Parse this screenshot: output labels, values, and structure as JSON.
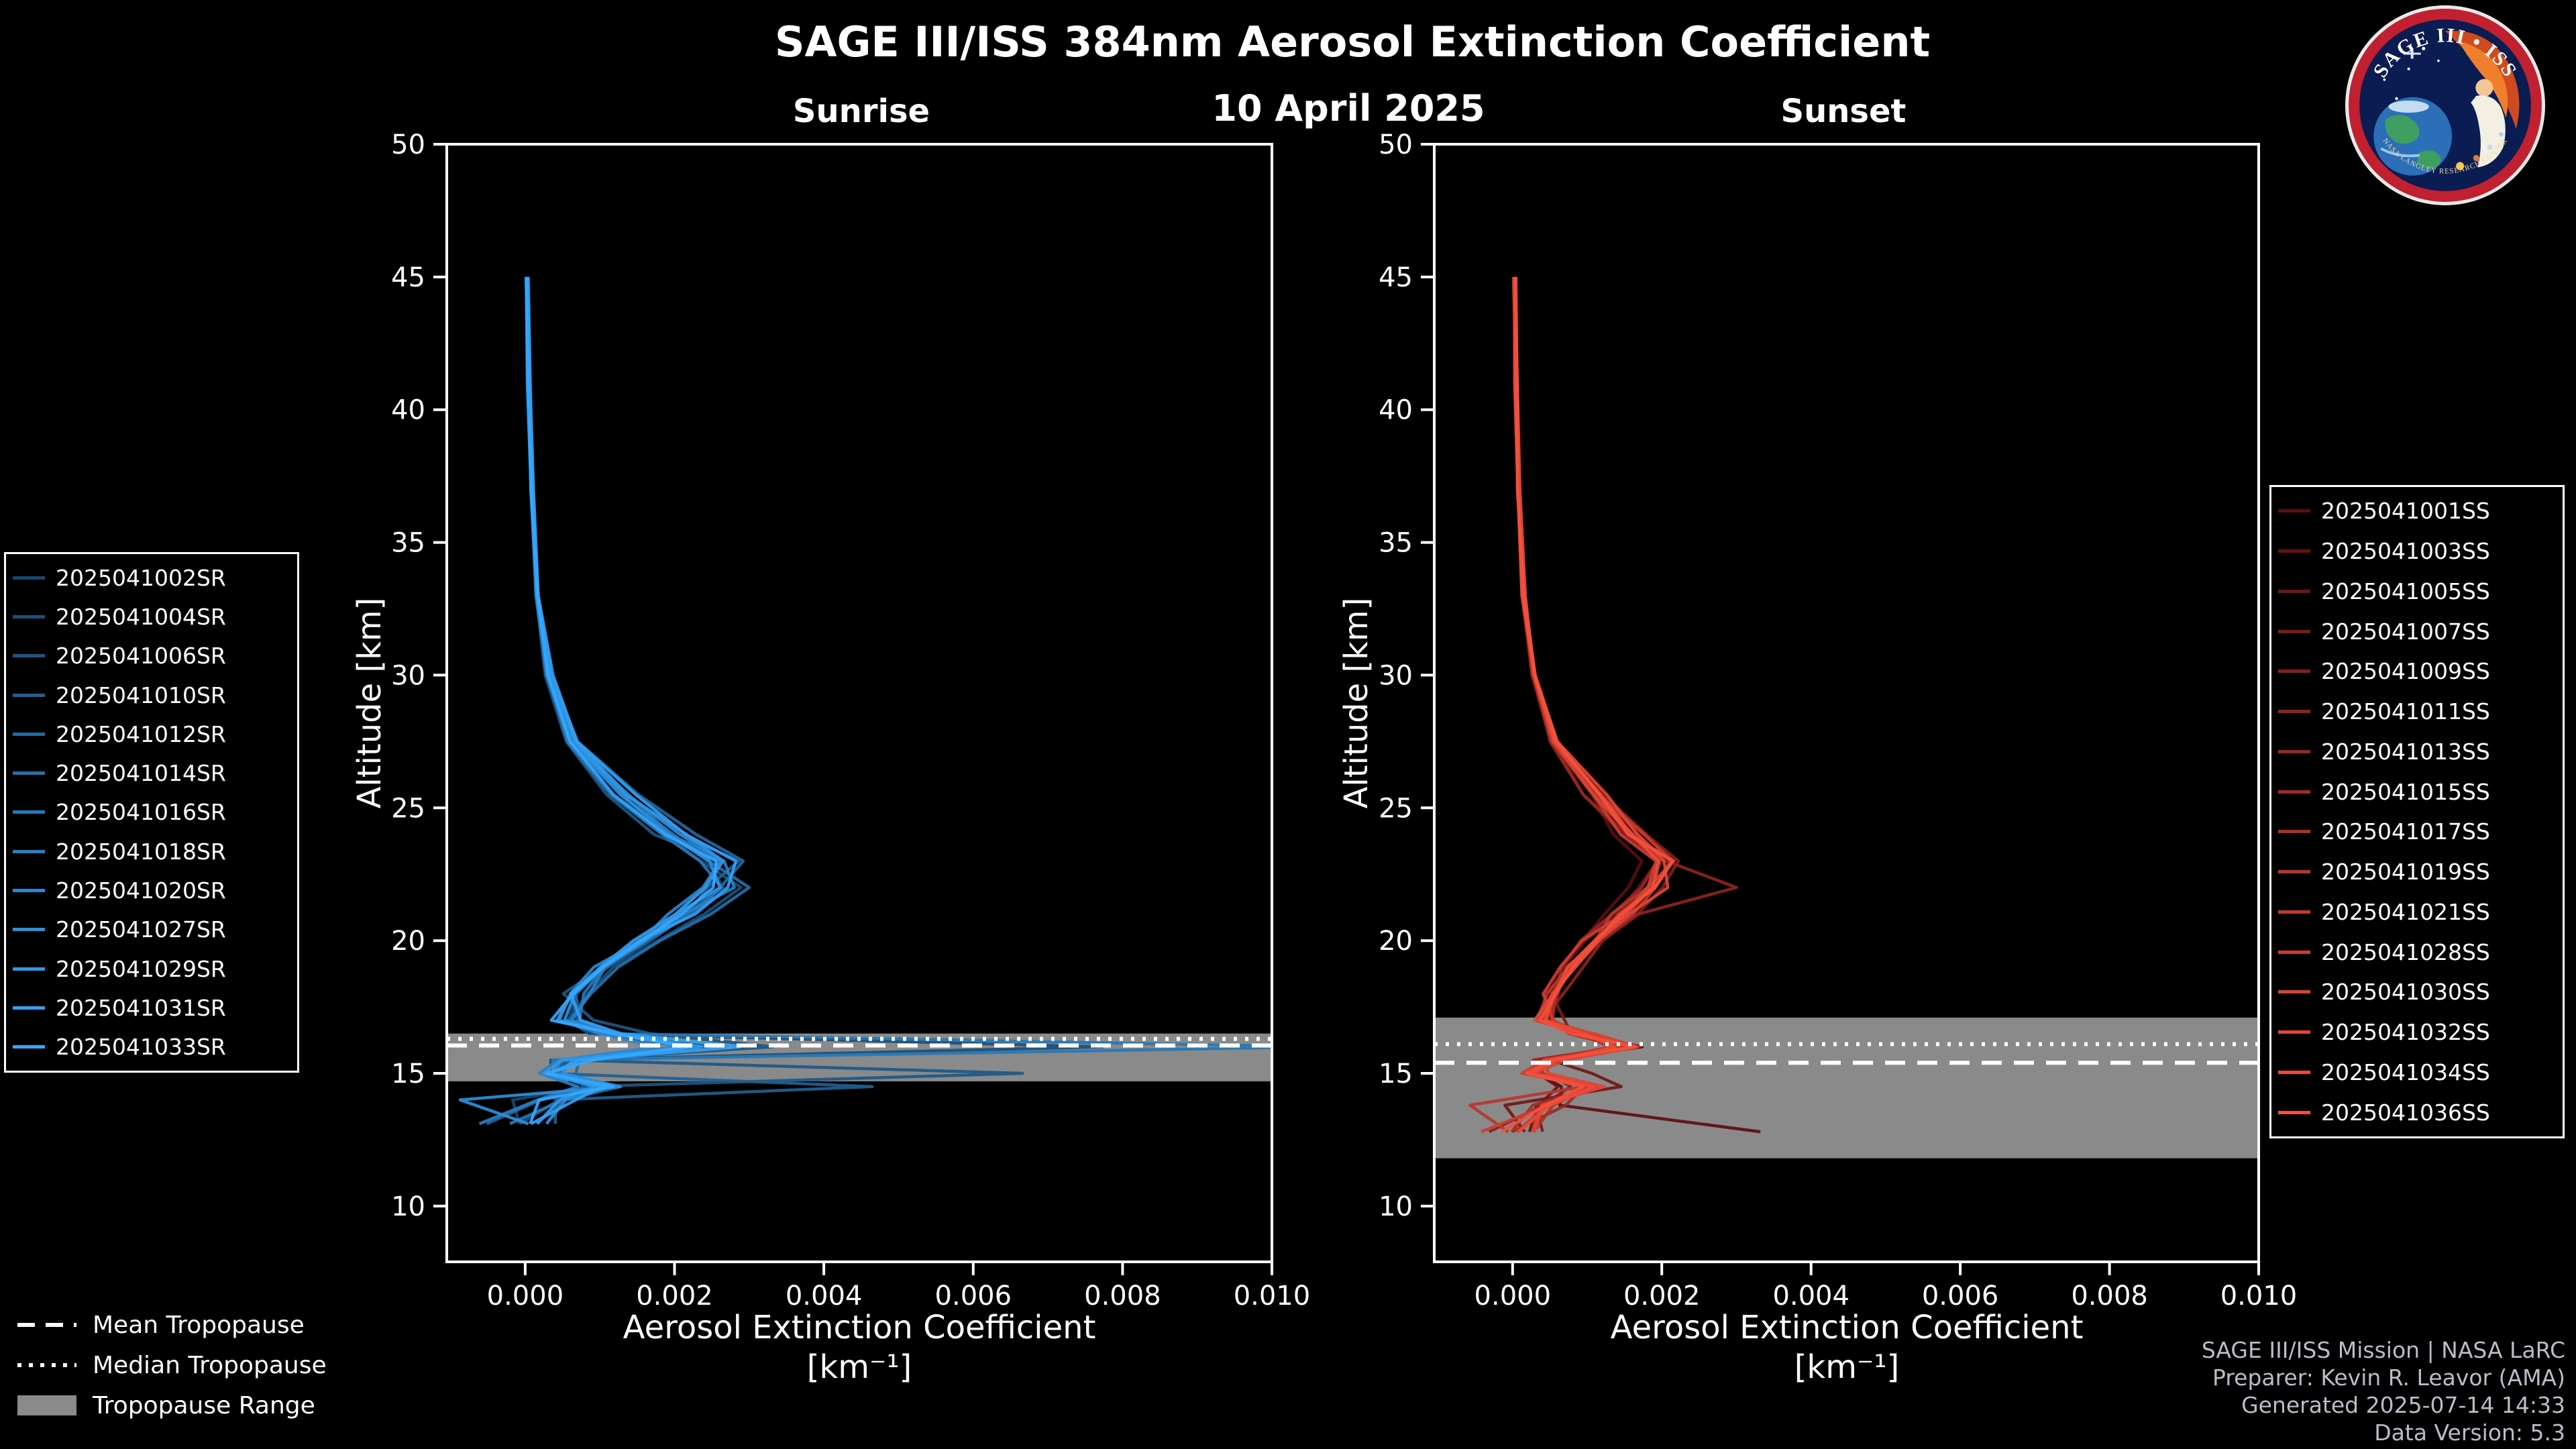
{
  "page": {
    "title": "SAGE III/ISS 384nm Aerosol Extinction Coefficient",
    "date": "10 April 2025",
    "background": "#000000",
    "text_color": "#ffffff"
  },
  "logo": {
    "title": "SAGE III • ISS",
    "subtext": "NASA LANGLEY RESEARCH CENTER"
  },
  "tropopause_legend": {
    "mean": "Mean Tropopause",
    "median": "Median Tropopause",
    "range": "Tropopause Range"
  },
  "credits": {
    "line1": "SAGE III/ISS Mission | NASA LaRC",
    "line2": "Preparer: Kevin R. Leavor (AMA)",
    "line3": "Generated 2025-07-14 14:33",
    "line4": "Data Version: 5.3"
  },
  "chart_data": [
    {
      "type": "line",
      "title": "Sunrise",
      "xlabel": "Aerosol Extinction Coefficient",
      "xlabel_units": "[km⁻¹]",
      "ylabel": "Altitude [km]",
      "xlim": [
        -0.00105,
        0.01
      ],
      "ylim": [
        7.9,
        50
      ],
      "xticks": [
        0,
        0.002,
        0.004,
        0.006,
        0.008,
        0.01
      ],
      "xtick_labels": [
        "0.000",
        "0.002",
        "0.004",
        "0.006",
        "0.008",
        "0.010"
      ],
      "yticks": [
        10,
        15,
        20,
        25,
        30,
        35,
        40,
        45,
        50
      ],
      "grid": false,
      "legend_position": "outside-left",
      "color_start": "#17486f",
      "color_end": "#35a7ff",
      "band_color": "#8a8a8a",
      "ext_scale": 0.001,
      "jitter": 9e-05,
      "tropopause": {
        "mean": 16.05,
        "median": 16.3,
        "range": [
          14.7,
          16.5
        ]
      },
      "altitudes": [
        45,
        41,
        37,
        33,
        30,
        27.5,
        25.5,
        24,
        23,
        22,
        21,
        20,
        19,
        18,
        17,
        16.5,
        16,
        15.5,
        15,
        14.5,
        14,
        13.1
      ],
      "series": [
        {
          "label": "2025041002SR",
          "ext": [
            0.03,
            0.05,
            0.09,
            0.16,
            0.32,
            0.65,
            1.3,
            2.0,
            2.5,
            2.7,
            2.2,
            1.6,
            1.1,
            0.7,
            0.5,
            1.2,
            2.6,
            0.6,
            0.2,
            0.9,
            -0.3,
            0.1
          ]
        },
        {
          "label": "2025041004SR",
          "ext": [
            0.02,
            0.04,
            0.08,
            0.15,
            0.3,
            0.6,
            1.2,
            1.8,
            2.3,
            2.9,
            2.4,
            1.8,
            1.2,
            0.8,
            0.6,
            0.9,
            7.7,
            0.4,
            0.3,
            1.1,
            0.5,
            -0.2
          ]
        },
        {
          "label": "2025041006SR",
          "ext": [
            0.03,
            0.05,
            0.08,
            0.14,
            0.28,
            0.55,
            1.1,
            1.7,
            2.6,
            2.4,
            2.0,
            1.5,
            1.0,
            0.6,
            0.8,
            1.5,
            3.4,
            0.5,
            6.5,
            0.8,
            0.3,
            0.0
          ]
        },
        {
          "label": "2025041010SR",
          "ext": [
            0.02,
            0.05,
            0.09,
            0.17,
            0.33,
            0.7,
            1.4,
            2.1,
            2.8,
            2.5,
            2.1,
            1.6,
            1.1,
            0.7,
            0.5,
            1.0,
            2.2,
            0.7,
            0.4,
            4.5,
            0.6,
            0.2
          ]
        },
        {
          "label": "2025041012SR",
          "ext": [
            0.03,
            0.06,
            0.1,
            0.18,
            0.35,
            0.72,
            1.5,
            2.2,
            2.9,
            2.6,
            2.1,
            1.5,
            1.0,
            0.7,
            0.6,
            1.3,
            2.8,
            0.8,
            0.5,
            1.0,
            0.4,
            -0.4
          ]
        },
        {
          "label": "2025041014SR",
          "ext": [
            0.03,
            0.05,
            0.09,
            0.16,
            0.31,
            0.62,
            1.2,
            1.9,
            2.4,
            3.0,
            2.5,
            1.8,
            1.2,
            0.8,
            0.7,
            1.1,
            2.4,
            0.9,
            0.6,
            1.2,
            0.5,
            0.1
          ]
        },
        {
          "label": "2025041016SR",
          "ext": [
            0.02,
            0.04,
            0.07,
            0.14,
            0.29,
            0.58,
            1.2,
            1.8,
            2.3,
            2.7,
            2.3,
            1.7,
            1.1,
            0.7,
            0.6,
            1.0,
            10.5,
            0.5,
            0.4,
            0.9,
            0.3,
            0.0
          ]
        },
        {
          "label": "2025041018SR",
          "ext": [
            0.03,
            0.05,
            0.08,
            0.15,
            0.3,
            0.6,
            1.3,
            2.0,
            2.7,
            2.8,
            2.2,
            1.6,
            1.1,
            0.8,
            0.6,
            1.2,
            2.0,
            0.6,
            0.3,
            0.8,
            0.2,
            -0.6
          ]
        },
        {
          "label": "2025041020SR",
          "ext": [
            0.03,
            0.05,
            0.09,
            0.16,
            0.32,
            0.66,
            1.3,
            2.0,
            2.6,
            2.4,
            2.0,
            1.5,
            1.0,
            0.6,
            0.5,
            0.9,
            1.8,
            0.5,
            0.4,
            1.0,
            0.4,
            0.1
          ]
        },
        {
          "label": "2025041027SR",
          "ext": [
            0.02,
            0.04,
            0.08,
            0.15,
            0.31,
            0.63,
            1.3,
            1.9,
            2.5,
            2.6,
            2.1,
            1.6,
            1.0,
            0.7,
            0.6,
            1.1,
            2.3,
            0.7,
            0.5,
            1.3,
            -0.8,
            0.2
          ]
        },
        {
          "label": "2025041029SR",
          "ext": [
            0.03,
            0.05,
            0.09,
            0.17,
            0.34,
            0.68,
            1.4,
            2.1,
            2.7,
            2.5,
            2.0,
            1.5,
            1.0,
            0.7,
            0.5,
            1.0,
            2.5,
            0.6,
            0.4,
            1.1,
            0.5,
            0.3
          ]
        },
        {
          "label": "2025041031SR",
          "ext": [
            0.03,
            0.06,
            0.1,
            0.18,
            0.36,
            0.7,
            1.4,
            2.2,
            2.8,
            2.7,
            2.2,
            1.6,
            1.1,
            0.7,
            0.6,
            1.2,
            2.7,
            0.8,
            0.5,
            0.9,
            0.6,
            0.2
          ]
        },
        {
          "label": "2025041033SR",
          "ext": [
            0.02,
            0.04,
            0.08,
            0.15,
            0.3,
            0.61,
            1.2,
            1.9,
            2.5,
            2.6,
            2.1,
            1.5,
            1.0,
            0.7,
            0.5,
            1.0,
            2.1,
            0.7,
            0.4,
            1.0,
            0.3,
            -0.1
          ]
        }
      ]
    },
    {
      "type": "line",
      "title": "Sunset",
      "xlabel": "Aerosol Extinction Coefficient",
      "xlabel_units": "[km⁻¹]",
      "ylabel": "Altitude [km]",
      "xlim": [
        -0.00105,
        0.01
      ],
      "ylim": [
        7.9,
        50
      ],
      "xticks": [
        0,
        0.002,
        0.004,
        0.006,
        0.008,
        0.01
      ],
      "xtick_labels": [
        "0.000",
        "0.002",
        "0.004",
        "0.006",
        "0.008",
        "0.010"
      ],
      "yticks": [
        10,
        15,
        20,
        25,
        30,
        35,
        40,
        45,
        50
      ],
      "grid": false,
      "legend_position": "outside-right",
      "color_start": "#5e0d10",
      "color_end": "#f4503c",
      "band_color": "#8a8a8a",
      "ext_scale": 0.001,
      "jitter": 9e-05,
      "tropopause": {
        "mean": 15.4,
        "median": 16.1,
        "range": [
          11.8,
          17.1
        ]
      },
      "altitudes": [
        45,
        41,
        37,
        33,
        30,
        27.5,
        25.5,
        24,
        23,
        22,
        21,
        20,
        19,
        18,
        17,
        16.5,
        16,
        15.5,
        15,
        14.5,
        13.8,
        12.8
      ],
      "series": [
        {
          "label": "2025041001SS",
          "ext": [
            0.03,
            0.05,
            0.08,
            0.14,
            0.28,
            0.55,
            1.0,
            1.4,
            1.8,
            1.6,
            1.3,
            1.0,
            0.7,
            0.5,
            0.4,
            0.8,
            1.5,
            0.4,
            0.2,
            0.7,
            0.5,
            3.5
          ]
        },
        {
          "label": "2025041003SS",
          "ext": [
            0.02,
            0.04,
            0.07,
            0.13,
            0.26,
            0.52,
            1.0,
            1.5,
            1.9,
            1.7,
            1.4,
            1.0,
            0.7,
            0.5,
            0.5,
            0.9,
            1.7,
            0.5,
            0.3,
            0.8,
            0.4,
            0.1
          ]
        },
        {
          "label": "2025041005SS",
          "ext": [
            0.03,
            0.05,
            0.08,
            0.15,
            0.29,
            0.58,
            1.1,
            1.6,
            2.0,
            1.8,
            1.4,
            1.1,
            0.8,
            0.5,
            0.4,
            0.7,
            1.4,
            0.4,
            0.9,
            1.5,
            -0.3,
            0.0
          ]
        },
        {
          "label": "2025041007SS",
          "ext": [
            0.02,
            0.04,
            0.08,
            0.14,
            0.27,
            0.54,
            1.0,
            1.5,
            2.1,
            1.9,
            1.5,
            1.1,
            0.8,
            0.6,
            0.5,
            0.8,
            1.6,
            0.6,
            0.4,
            1.0,
            0.5,
            0.2
          ]
        },
        {
          "label": "2025041009SS",
          "ext": [
            0.03,
            0.05,
            0.09,
            0.16,
            0.3,
            0.6,
            1.2,
            1.7,
            2.2,
            2.0,
            1.6,
            1.2,
            0.8,
            0.6,
            0.4,
            0.9,
            1.8,
            0.5,
            0.3,
            0.9,
            0.6,
            -0.2
          ]
        },
        {
          "label": "2025041011SS",
          "ext": [
            0.03,
            0.05,
            0.08,
            0.15,
            0.29,
            0.57,
            1.1,
            1.6,
            2.0,
            3.0,
            1.7,
            1.2,
            0.9,
            0.6,
            0.5,
            0.8,
            1.5,
            0.5,
            0.4,
            1.1,
            0.4,
            0.1
          ]
        },
        {
          "label": "2025041013SS",
          "ext": [
            0.02,
            0.04,
            0.07,
            0.13,
            0.26,
            0.52,
            1.0,
            1.5,
            1.9,
            1.8,
            1.4,
            1.0,
            0.7,
            0.5,
            0.4,
            0.7,
            1.3,
            0.4,
            0.3,
            0.8,
            0.5,
            0.2
          ]
        },
        {
          "label": "2025041015SS",
          "ext": [
            0.03,
            0.05,
            0.08,
            0.14,
            0.28,
            0.56,
            1.1,
            1.6,
            2.0,
            1.9,
            1.5,
            1.1,
            0.8,
            0.5,
            0.5,
            0.9,
            1.6,
            0.6,
            0.4,
            1.2,
            0.3,
            0.0
          ]
        },
        {
          "label": "2025041017SS",
          "ext": [
            0.02,
            0.04,
            0.08,
            0.15,
            0.29,
            0.58,
            1.1,
            1.7,
            2.1,
            1.9,
            1.5,
            1.1,
            0.8,
            0.6,
            0.5,
            0.8,
            1.7,
            0.5,
            0.3,
            0.9,
            0.4,
            0.1
          ]
        },
        {
          "label": "2025041019SS",
          "ext": [
            0.03,
            0.05,
            0.08,
            0.14,
            0.28,
            0.55,
            1.1,
            1.6,
            2.0,
            1.8,
            1.4,
            1.1,
            0.7,
            0.5,
            0.4,
            0.8,
            1.5,
            0.5,
            0.4,
            1.0,
            -0.5,
            0.1
          ]
        },
        {
          "label": "2025041021SS",
          "ext": [
            0.03,
            0.05,
            0.09,
            0.16,
            0.31,
            0.61,
            1.2,
            1.7,
            2.2,
            2.0,
            1.6,
            1.2,
            0.8,
            0.6,
            0.5,
            0.9,
            1.8,
            0.6,
            0.4,
            1.1,
            0.5,
            0.2
          ]
        },
        {
          "label": "2025041028SS",
          "ext": [
            0.02,
            0.04,
            0.07,
            0.14,
            0.27,
            0.54,
            1.0,
            1.5,
            1.9,
            1.8,
            1.4,
            1.0,
            0.7,
            0.5,
            0.4,
            0.8,
            1.4,
            0.5,
            0.3,
            0.9,
            0.4,
            -0.3
          ]
        },
        {
          "label": "2025041030SS",
          "ext": [
            0.03,
            0.05,
            0.08,
            0.15,
            0.29,
            0.57,
            1.1,
            1.6,
            2.1,
            1.9,
            1.5,
            1.1,
            0.8,
            0.6,
            0.5,
            0.9,
            1.6,
            0.5,
            0.4,
            1.0,
            0.5,
            0.1
          ]
        },
        {
          "label": "2025041032SS",
          "ext": [
            0.03,
            0.05,
            0.09,
            0.16,
            0.3,
            0.6,
            1.2,
            1.7,
            2.1,
            2.0,
            1.6,
            1.2,
            0.8,
            0.6,
            0.5,
            0.8,
            1.7,
            0.6,
            0.4,
            1.1,
            0.4,
            0.2
          ]
        },
        {
          "label": "2025041034SS",
          "ext": [
            0.02,
            0.04,
            0.08,
            0.14,
            0.28,
            0.56,
            1.1,
            1.6,
            2.0,
            1.9,
            1.5,
            1.1,
            0.8,
            0.5,
            0.4,
            0.8,
            1.5,
            0.5,
            0.3,
            1.0,
            0.5,
            0.1
          ]
        },
        {
          "label": "2025041036SS",
          "ext": [
            0.03,
            0.05,
            0.08,
            0.15,
            0.29,
            0.58,
            1.1,
            1.6,
            2.1,
            1.9,
            1.5,
            1.1,
            0.8,
            0.6,
            0.5,
            0.9,
            1.6,
            0.6,
            0.4,
            1.0,
            0.4,
            0.0
          ]
        }
      ]
    }
  ]
}
